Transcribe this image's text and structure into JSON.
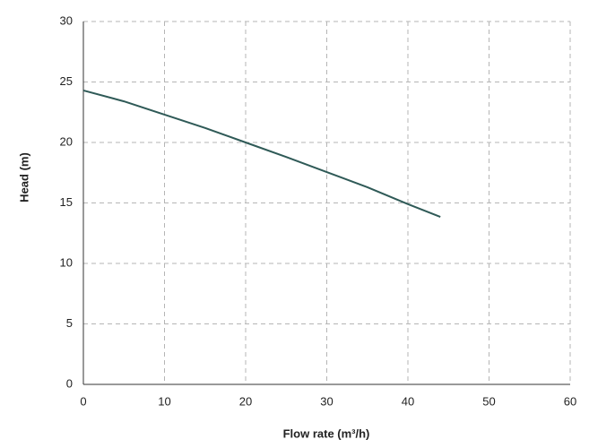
{
  "chart_data": {
    "type": "line",
    "xlabel": "Flow rate (m³/h)",
    "ylabel": "Head (m)",
    "x": [
      0,
      5,
      10,
      15,
      20,
      25,
      30,
      35,
      40,
      44
    ],
    "values": [
      24.3,
      23.4,
      22.3,
      21.2,
      20.0,
      18.8,
      17.55,
      16.3,
      14.9,
      13.85
    ],
    "color": "#2f5a57",
    "xlim": [
      0,
      60
    ],
    "xticks": [
      0,
      10,
      20,
      30,
      40,
      50,
      60
    ],
    "ylim": [
      0,
      30
    ],
    "yticks": [
      0,
      5,
      10,
      15,
      20,
      25,
      30
    ],
    "grid": true
  }
}
